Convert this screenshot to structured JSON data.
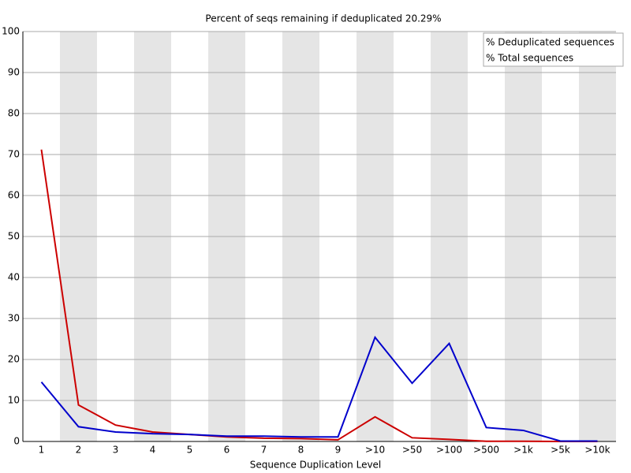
{
  "chart_data": {
    "type": "line",
    "title": "Percent of seqs remaining if deduplicated 20.29%",
    "x_label": "Sequence Duplication Level",
    "categories": [
      "1",
      "2",
      "3",
      "4",
      "5",
      "6",
      "7",
      "8",
      "9",
      ">10",
      ">50",
      ">100",
      ">500",
      ">1k",
      ">5k",
      ">10k"
    ],
    "series": [
      {
        "name": "% Deduplicated sequences",
        "color": "#cc0000",
        "values": [
          71.2,
          8.9,
          4.0,
          2.3,
          1.7,
          1.1,
          0.8,
          0.7,
          0.4,
          6.0,
          0.9,
          0.5,
          0.05,
          0.05,
          0.0,
          0.0
        ]
      },
      {
        "name": "% Total sequences",
        "color": "#0000cc",
        "values": [
          14.5,
          3.6,
          2.3,
          1.9,
          1.7,
          1.3,
          1.3,
          1.1,
          1.1,
          25.4,
          14.2,
          23.9,
          3.4,
          2.7,
          0.1,
          0.1
        ]
      }
    ],
    "ylim": [
      0,
      100
    ],
    "yticks": [
      0,
      10,
      20,
      30,
      40,
      50,
      60,
      70,
      80,
      90,
      100
    ],
    "grid": true,
    "legend": "top-right"
  }
}
